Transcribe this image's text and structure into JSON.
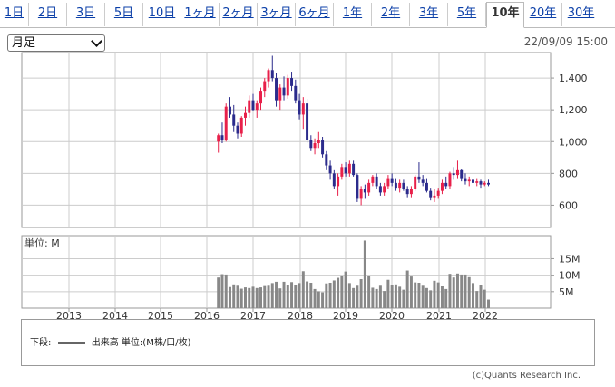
{
  "tabs": [
    {
      "label": "1日"
    },
    {
      "label": "2日"
    },
    {
      "label": "3日"
    },
    {
      "label": "5日"
    },
    {
      "label": "10日"
    },
    {
      "label": "1ヶ月"
    },
    {
      "label": "2ヶ月"
    },
    {
      "label": "3ヶ月"
    },
    {
      "label": "6ヶ月"
    },
    {
      "label": "1年"
    },
    {
      "label": "2年"
    },
    {
      "label": "3年"
    },
    {
      "label": "5年"
    },
    {
      "label": "10年",
      "active": true
    },
    {
      "label": "20年"
    },
    {
      "label": "30年"
    }
  ],
  "period_select": {
    "value": "月足"
  },
  "timestamp": "22/09/09 15:00",
  "volume_unit_label": "単位: M",
  "legend": {
    "prefix": "下段:",
    "text": "出来高 単位:(M株/口/枚)"
  },
  "copyright": "(c)Quants Research Inc.",
  "colors": {
    "up": "#e8204a",
    "down": "#2b2b8c",
    "volume": "#888888",
    "grid": "#cccccc"
  },
  "chart_data": {
    "type": "candlestick",
    "price_axis": {
      "ticks": [
        600,
        800,
        1000,
        1200,
        1400
      ],
      "tick_labels": [
        "600",
        "800",
        "1,000",
        "1,200",
        "1,400"
      ],
      "range": [
        460,
        1560
      ]
    },
    "volume_axis": {
      "ticks": [
        5,
        10,
        15
      ],
      "tick_labels": [
        "5M",
        "10M",
        "15M"
      ],
      "range": [
        0,
        22
      ]
    },
    "x_axis": {
      "years": [
        2013,
        2014,
        2015,
        2016,
        2017,
        2018,
        2019,
        2020,
        2021,
        2022
      ],
      "grid_on": true
    },
    "start": "2016-10",
    "candles": [
      [
        1000,
        1050,
        930,
        1040
      ],
      [
        1040,
        1120,
        990,
        1010
      ],
      [
        1010,
        1240,
        1000,
        1220
      ],
      [
        1220,
        1280,
        1150,
        1170
      ],
      [
        1170,
        1230,
        1060,
        1100
      ],
      [
        1100,
        1120,
        1020,
        1050
      ],
      [
        1050,
        1160,
        1030,
        1150
      ],
      [
        1150,
        1220,
        1100,
        1180
      ],
      [
        1180,
        1290,
        1150,
        1260
      ],
      [
        1260,
        1300,
        1190,
        1200
      ],
      [
        1200,
        1260,
        1150,
        1240
      ],
      [
        1240,
        1340,
        1200,
        1320
      ],
      [
        1320,
        1400,
        1280,
        1380
      ],
      [
        1380,
        1460,
        1340,
        1450
      ],
      [
        1450,
        1540,
        1380,
        1400
      ],
      [
        1400,
        1430,
        1220,
        1260
      ],
      [
        1260,
        1360,
        1200,
        1340
      ],
      [
        1340,
        1410,
        1260,
        1290
      ],
      [
        1290,
        1420,
        1270,
        1400
      ],
      [
        1400,
        1440,
        1320,
        1350
      ],
      [
        1350,
        1390,
        1240,
        1260
      ],
      [
        1260,
        1300,
        1140,
        1170
      ],
      [
        1170,
        1280,
        1080,
        1240
      ],
      [
        1240,
        1270,
        990,
        1010
      ],
      [
        1010,
        1040,
        940,
        960
      ],
      [
        960,
        1020,
        920,
        990
      ],
      [
        990,
        1060,
        960,
        1010
      ],
      [
        1010,
        1030,
        900,
        920
      ],
      [
        920,
        940,
        820,
        850
      ],
      [
        850,
        880,
        760,
        800
      ],
      [
        800,
        820,
        700,
        720
      ],
      [
        720,
        800,
        660,
        780
      ],
      [
        780,
        860,
        760,
        840
      ],
      [
        840,
        870,
        780,
        800
      ],
      [
        800,
        880,
        780,
        860
      ],
      [
        860,
        880,
        780,
        790
      ],
      [
        790,
        800,
        620,
        640
      ],
      [
        640,
        720,
        600,
        700
      ],
      [
        700,
        730,
        640,
        680
      ],
      [
        680,
        760,
        660,
        740
      ],
      [
        740,
        790,
        720,
        780
      ],
      [
        780,
        800,
        700,
        720
      ],
      [
        720,
        740,
        660,
        680
      ],
      [
        680,
        740,
        660,
        720
      ],
      [
        720,
        790,
        700,
        770
      ],
      [
        770,
        800,
        720,
        740
      ],
      [
        740,
        770,
        690,
        710
      ],
      [
        710,
        760,
        680,
        740
      ],
      [
        740,
        760,
        690,
        700
      ],
      [
        700,
        720,
        650,
        670
      ],
      [
        670,
        720,
        650,
        700
      ],
      [
        700,
        790,
        690,
        780
      ],
      [
        780,
        870,
        740,
        760
      ],
      [
        760,
        790,
        720,
        740
      ],
      [
        740,
        770,
        680,
        690
      ],
      [
        690,
        710,
        630,
        650
      ],
      [
        650,
        700,
        620,
        660
      ],
      [
        660,
        710,
        640,
        690
      ],
      [
        690,
        760,
        670,
        740
      ],
      [
        740,
        780,
        700,
        720
      ],
      [
        720,
        810,
        700,
        800
      ],
      [
        800,
        840,
        760,
        790
      ],
      [
        790,
        880,
        770,
        820
      ],
      [
        820,
        830,
        750,
        770
      ],
      [
        770,
        800,
        730,
        750
      ],
      [
        750,
        780,
        720,
        760
      ],
      [
        760,
        780,
        720,
        740
      ],
      [
        740,
        770,
        720,
        750
      ],
      [
        750,
        760,
        710,
        730
      ],
      [
        730,
        750,
        720,
        740
      ],
      [
        740,
        760,
        720,
        730
      ]
    ],
    "volume": [
      9.3,
      10.3,
      10.2,
      6.4,
      7.2,
      6.8,
      5.9,
      6.3,
      6.1,
      6.5,
      6.1,
      6.3,
      6.7,
      6.8,
      7.6,
      8.0,
      6.0,
      8.0,
      6.9,
      7.9,
      6.9,
      7.6,
      11.2,
      8.1,
      7.7,
      5.8,
      5.1,
      4.8,
      7.5,
      7.7,
      8.4,
      9.2,
      9.7,
      11.1,
      7.6,
      6.1,
      6.8,
      8.8,
      20.5,
      9.7,
      6.2,
      5.8,
      6.8,
      5.2,
      8.6,
      6.9,
      7.2,
      6.5,
      5.6,
      11.4,
      9.6,
      7.8,
      7.7,
      6.8,
      6.1,
      5.4,
      8.3,
      7.8,
      6.6,
      5.8,
      10.4,
      9.3,
      10.5,
      10.2,
      10.2,
      9.4,
      7.6,
      5.2,
      7.0,
      5.6,
      2.6
    ]
  }
}
